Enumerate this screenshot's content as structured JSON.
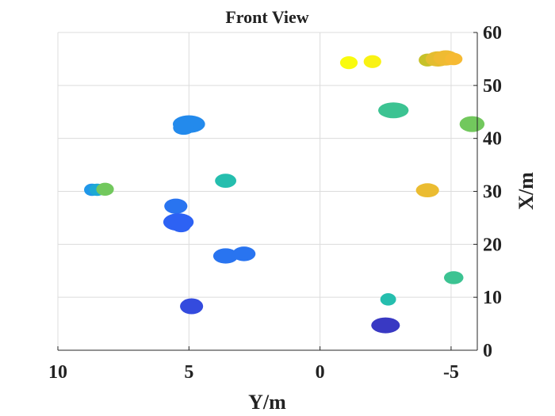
{
  "chart_data": {
    "type": "scatter",
    "title": "Front View",
    "xlabel": "Y/m",
    "ylabel": "X/m",
    "xlim": [
      10,
      -6
    ],
    "ylim": [
      0,
      60
    ],
    "x_ticks": [
      10,
      5,
      0,
      -5
    ],
    "x_tick_labels": [
      "10",
      "5",
      "0",
      "-5"
    ],
    "y_ticks": [
      0,
      10,
      20,
      30,
      40,
      50,
      60
    ],
    "y_tick_labels": [
      "0",
      "10",
      "20",
      "30",
      "40",
      "50",
      "60"
    ],
    "grid": true,
    "y_axis_position": "right",
    "colormap": [
      "#3e26a8",
      "#2f5bf5",
      "#1f99e9",
      "#1bbcba",
      "#5dca6a",
      "#c4c129",
      "#f9ba34",
      "#f9fb0e"
    ],
    "clusters": [
      {
        "y": -1.1,
        "x": 54.3,
        "w": 0.35,
        "h": 1.4,
        "c": 1.0
      },
      {
        "y": -2.0,
        "x": 54.5,
        "w": 0.35,
        "h": 1.4,
        "c": 0.98
      },
      {
        "y": -4.1,
        "x": 54.8,
        "w": 0.35,
        "h": 1.4,
        "c": 0.72
      },
      {
        "y": -4.5,
        "x": 55.0,
        "w": 0.55,
        "h": 1.8,
        "c": 0.8
      },
      {
        "y": -4.8,
        "x": 55.2,
        "w": 0.55,
        "h": 1.8,
        "c": 0.83
      },
      {
        "y": -5.1,
        "x": 55.0,
        "w": 0.35,
        "h": 1.3,
        "c": 0.85
      },
      {
        "y": -2.8,
        "x": 45.3,
        "w": 0.7,
        "h": 1.9,
        "c": 0.5
      },
      {
        "y": -5.8,
        "x": 42.7,
        "w": 0.55,
        "h": 1.9,
        "c": 0.6
      },
      {
        "y": 5.0,
        "x": 42.7,
        "w": 0.75,
        "h": 2.2,
        "c": 0.25
      },
      {
        "y": 5.2,
        "x": 42.0,
        "w": 0.45,
        "h": 1.6,
        "c": 0.25
      },
      {
        "y": 3.6,
        "x": 32.0,
        "w": 0.45,
        "h": 1.6,
        "c": 0.45
      },
      {
        "y": 8.7,
        "x": 30.3,
        "w": 0.3,
        "h": 1.3,
        "c": 0.28
      },
      {
        "y": 8.5,
        "x": 30.3,
        "w": 0.3,
        "h": 1.3,
        "c": 0.35
      },
      {
        "y": 8.2,
        "x": 30.4,
        "w": 0.35,
        "h": 1.4,
        "c": 0.6
      },
      {
        "y": -4.1,
        "x": 30.2,
        "w": 0.5,
        "h": 1.6,
        "c": 0.82
      },
      {
        "y": 5.5,
        "x": 27.2,
        "w": 0.5,
        "h": 1.8,
        "c": 0.2
      },
      {
        "y": 5.4,
        "x": 24.2,
        "w": 0.7,
        "h": 2.2,
        "c": 0.16
      },
      {
        "y": 5.3,
        "x": 23.5,
        "w": 0.4,
        "h": 1.4,
        "c": 0.16
      },
      {
        "y": 3.6,
        "x": 17.8,
        "w": 0.55,
        "h": 1.8,
        "c": 0.2
      },
      {
        "y": 2.9,
        "x": 18.2,
        "w": 0.5,
        "h": 1.7,
        "c": 0.2
      },
      {
        "y": -5.1,
        "x": 13.7,
        "w": 0.4,
        "h": 1.4,
        "c": 0.5
      },
      {
        "y": -2.6,
        "x": 9.6,
        "w": 0.3,
        "h": 1.3,
        "c": 0.45
      },
      {
        "y": 4.9,
        "x": 8.3,
        "w": 0.5,
        "h": 1.9,
        "c": 0.1
      },
      {
        "y": -2.5,
        "x": 4.7,
        "w": 0.65,
        "h": 1.9,
        "c": 0.05
      }
    ]
  }
}
